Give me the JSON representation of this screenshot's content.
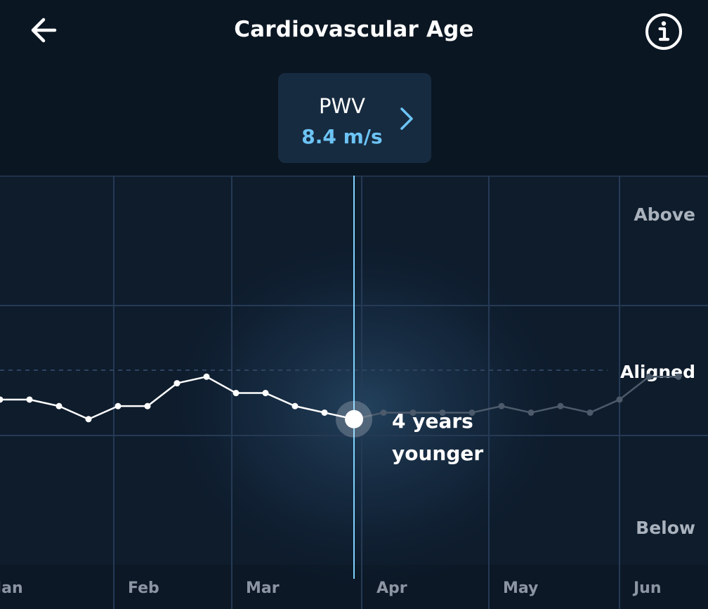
{
  "header": {
    "title": "Cardiovascular Age",
    "back_icon": "arrow-left-icon",
    "info_icon": "info-circle-icon"
  },
  "metric": {
    "label": "PWV",
    "value": "8.4 m/s",
    "chevron_icon": "chevron-right-icon"
  },
  "chart_data": {
    "type": "line",
    "title": "",
    "xlabel": "",
    "ylabel": "",
    "x_tick_labels": [
      "Jan",
      "Feb",
      "Mar",
      "Apr",
      "May",
      "Jun"
    ],
    "y_band_labels": [
      "Above",
      "Aligned",
      "Below"
    ],
    "grid": true,
    "selected_annotation": "4 years\nyounger",
    "series": [
      {
        "values": [
          -0.45,
          -0.45,
          -0.55,
          -0.75,
          -0.55,
          -0.55,
          -0.2,
          -0.1,
          -0.35,
          -0.35,
          -0.55,
          -0.65,
          -0.75,
          -0.65,
          -0.65,
          -0.65,
          -0.65,
          -0.55,
          -0.65,
          -0.55,
          -0.65,
          -0.45,
          -0.1,
          -0.1
        ]
      }
    ],
    "selected_index": 12,
    "ylim": [
      -2.0,
      1.0
    ],
    "aligned_value": 0.0,
    "colors": {
      "line": "#ffffff",
      "line_faded": "#4c5a6b",
      "cursor": "#7fd3ff",
      "grid": "#253a55",
      "aligned_dash": "#2e4360"
    }
  }
}
